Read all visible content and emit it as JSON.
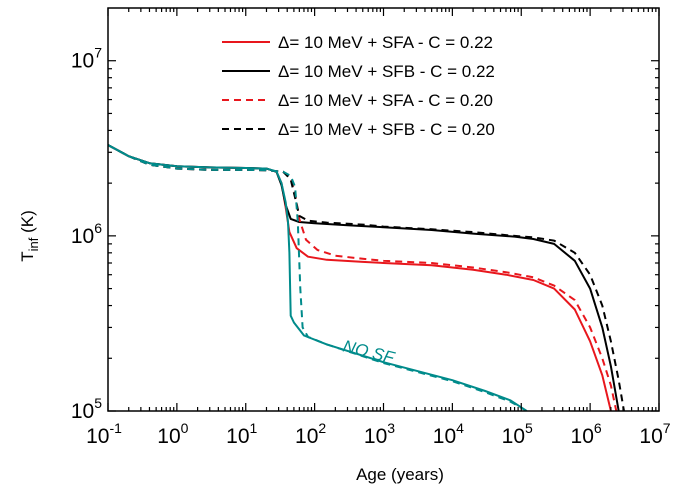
{
  "chart_data": {
    "type": "line",
    "xlabel": "Age (years)",
    "ylabel_main": "T",
    "ylabel_sub": "inf",
    "ylabel_unit": " (K)",
    "x_scale": "log",
    "y_scale": "log",
    "xlim": [
      0.1,
      10000000
    ],
    "ylim": [
      100000,
      20000000
    ],
    "grid": false,
    "legend_position": "top-right",
    "x_ticks": [
      {
        "base": "10",
        "exp": "-1",
        "value": 0.1
      },
      {
        "base": "10",
        "exp": "0",
        "value": 1
      },
      {
        "base": "10",
        "exp": "1",
        "value": 10
      },
      {
        "base": "10",
        "exp": "2",
        "value": 100
      },
      {
        "base": "10",
        "exp": "3",
        "value": 1000
      },
      {
        "base": "10",
        "exp": "4",
        "value": 10000
      },
      {
        "base": "10",
        "exp": "5",
        "value": 100000
      },
      {
        "base": "10",
        "exp": "6",
        "value": 1000000
      },
      {
        "base": "10",
        "exp": "7",
        "value": 10000000
      }
    ],
    "y_ticks": [
      {
        "base": "10",
        "exp": "5",
        "value": 100000
      },
      {
        "base": "10",
        "exp": "6",
        "value": 1000000
      },
      {
        "base": "10",
        "exp": "7",
        "value": 10000000
      }
    ],
    "annotation": {
      "text": "NO SF",
      "x": 250,
      "y": 220000,
      "angle": 14,
      "color": "#008b8b"
    },
    "series": [
      {
        "name": "Δ= 10 MeV + SFA - C = 0.22",
        "color": "#e8171d",
        "dash": false,
        "in_legend": true,
        "points": [
          [
            0.1,
            3300000
          ],
          [
            0.2,
            2850000
          ],
          [
            0.4,
            2600000
          ],
          [
            1,
            2500000
          ],
          [
            3,
            2460000
          ],
          [
            10,
            2440000
          ],
          [
            20,
            2420000
          ],
          [
            28,
            2320000
          ],
          [
            33,
            2000000
          ],
          [
            38,
            1450000
          ],
          [
            43,
            1050000
          ],
          [
            55,
            850000
          ],
          [
            80,
            760000
          ],
          [
            150,
            730000
          ],
          [
            500,
            710000
          ],
          [
            1000,
            700000
          ],
          [
            5000,
            680000
          ],
          [
            20000,
            640000
          ],
          [
            60000,
            600000
          ],
          [
            150000,
            560000
          ],
          [
            300000,
            500000
          ],
          [
            600000,
            380000
          ],
          [
            1000000,
            250000
          ],
          [
            1500000,
            160000
          ],
          [
            2000000,
            100000
          ]
        ]
      },
      {
        "name": "Δ= 10 MeV + SFB - C = 0.22",
        "color": "#000000",
        "dash": false,
        "in_legend": true,
        "points": [
          [
            0.1,
            3300000
          ],
          [
            0.2,
            2850000
          ],
          [
            0.4,
            2600000
          ],
          [
            1,
            2500000
          ],
          [
            3,
            2460000
          ],
          [
            10,
            2440000
          ],
          [
            20,
            2420000
          ],
          [
            28,
            2320000
          ],
          [
            33,
            1950000
          ],
          [
            38,
            1500000
          ],
          [
            45,
            1250000
          ],
          [
            60,
            1200000
          ],
          [
            100,
            1180000
          ],
          [
            300,
            1150000
          ],
          [
            1000,
            1120000
          ],
          [
            5000,
            1080000
          ],
          [
            20000,
            1030000
          ],
          [
            80000,
            990000
          ],
          [
            150000,
            960000
          ],
          [
            300000,
            900000
          ],
          [
            600000,
            720000
          ],
          [
            1000000,
            500000
          ],
          [
            1500000,
            300000
          ],
          [
            2000000,
            180000
          ],
          [
            2600000,
            100000
          ]
        ]
      },
      {
        "name": "Δ= 10 MeV + SFA - C = 0.20",
        "color": "#e8171d",
        "dash": true,
        "in_legend": true,
        "points": [
          [
            0.1,
            3300000
          ],
          [
            0.2,
            2850000
          ],
          [
            0.4,
            2550000
          ],
          [
            1,
            2420000
          ],
          [
            3,
            2380000
          ],
          [
            10,
            2380000
          ],
          [
            20,
            2370000
          ],
          [
            35,
            2320000
          ],
          [
            45,
            2150000
          ],
          [
            52,
            1750000
          ],
          [
            60,
            1250000
          ],
          [
            75,
            950000
          ],
          [
            110,
            830000
          ],
          [
            200,
            770000
          ],
          [
            500,
            740000
          ],
          [
            1000,
            720000
          ],
          [
            5000,
            700000
          ],
          [
            20000,
            660000
          ],
          [
            60000,
            620000
          ],
          [
            150000,
            580000
          ],
          [
            300000,
            520000
          ],
          [
            600000,
            430000
          ],
          [
            1000000,
            300000
          ],
          [
            1500000,
            200000
          ],
          [
            2000000,
            140000
          ],
          [
            2400000,
            100000
          ]
        ]
      },
      {
        "name": "Δ= 10 MeV + SFB - C = 0.20",
        "color": "#000000",
        "dash": true,
        "in_legend": true,
        "points": [
          [
            0.1,
            3300000
          ],
          [
            0.2,
            2850000
          ],
          [
            0.4,
            2550000
          ],
          [
            1,
            2420000
          ],
          [
            3,
            2380000
          ],
          [
            10,
            2380000
          ],
          [
            20,
            2370000
          ],
          [
            35,
            2320000
          ],
          [
            45,
            2100000
          ],
          [
            52,
            1650000
          ],
          [
            60,
            1300000
          ],
          [
            80,
            1220000
          ],
          [
            150,
            1190000
          ],
          [
            500,
            1160000
          ],
          [
            1000,
            1130000
          ],
          [
            5000,
            1090000
          ],
          [
            20000,
            1050000
          ],
          [
            80000,
            1000000
          ],
          [
            150000,
            980000
          ],
          [
            300000,
            940000
          ],
          [
            600000,
            800000
          ],
          [
            1000000,
            600000
          ],
          [
            1500000,
            400000
          ],
          [
            2000000,
            250000
          ],
          [
            2600000,
            150000
          ],
          [
            3100000,
            100000
          ]
        ]
      },
      {
        "name": "NO SF",
        "color": "#008b8b",
        "dash": false,
        "in_legend": false,
        "points": [
          [
            0.1,
            3300000
          ],
          [
            0.2,
            2850000
          ],
          [
            0.4,
            2600000
          ],
          [
            1,
            2500000
          ],
          [
            3,
            2460000
          ],
          [
            10,
            2440000
          ],
          [
            20,
            2420000
          ],
          [
            28,
            2330000
          ],
          [
            33,
            2000000
          ],
          [
            38,
            1550000
          ],
          [
            41,
            1200000
          ],
          [
            43,
            800000
          ],
          [
            45,
            350000
          ],
          [
            50,
            320000
          ],
          [
            70,
            270000
          ],
          [
            150,
            240000
          ],
          [
            1000,
            190000
          ],
          [
            10000,
            150000
          ],
          [
            30000,
            130000
          ],
          [
            70000,
            115000
          ],
          [
            120000,
            100000
          ]
        ]
      },
      {
        "name": "NO SF (dashed)",
        "color": "#008b8b",
        "dash": true,
        "in_legend": false,
        "points": [
          [
            0.1,
            3300000
          ],
          [
            0.2,
            2850000
          ],
          [
            0.4,
            2550000
          ],
          [
            1,
            2420000
          ],
          [
            3,
            2380000
          ],
          [
            10,
            2380000
          ],
          [
            20,
            2370000
          ],
          [
            35,
            2320000
          ],
          [
            45,
            2200000
          ],
          [
            52,
            1900000
          ],
          [
            57,
            1200000
          ],
          [
            62,
            500000
          ],
          [
            67,
            300000
          ],
          [
            80,
            265000
          ],
          [
            150,
            240000
          ],
          [
            1000,
            188000
          ],
          [
            10000,
            148000
          ],
          [
            30000,
            128000
          ],
          [
            70000,
            113000
          ],
          [
            120000,
            100000
          ]
        ]
      }
    ]
  }
}
